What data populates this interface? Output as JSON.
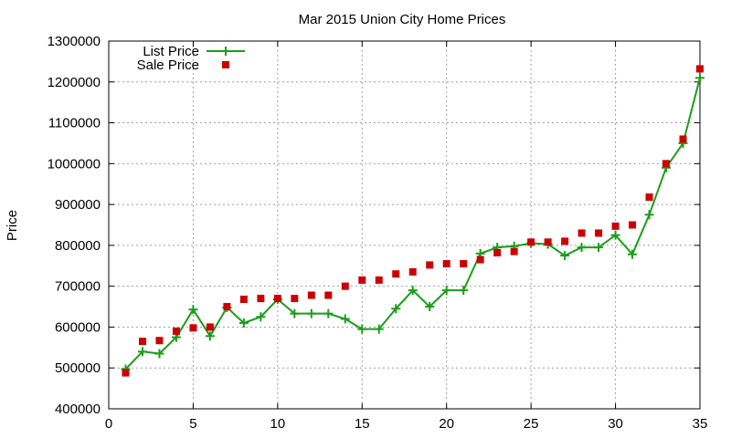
{
  "chart_data": {
    "type": "line",
    "title": "Mar 2015 Union City Home Prices",
    "xlabel": "",
    "ylabel": "Price",
    "xlim": [
      0,
      35
    ],
    "ylim": [
      400000,
      1300000
    ],
    "x_ticks": [
      0,
      5,
      10,
      15,
      20,
      25,
      30,
      35
    ],
    "y_ticks": [
      400000,
      500000,
      600000,
      700000,
      800000,
      900000,
      1000000,
      1100000,
      1200000,
      1300000
    ],
    "grid": true,
    "legend_position": "top-left",
    "x": [
      1,
      2,
      3,
      4,
      5,
      6,
      7,
      8,
      9,
      10,
      11,
      12,
      13,
      14,
      15,
      16,
      17,
      18,
      19,
      20,
      21,
      22,
      23,
      24,
      25,
      26,
      27,
      28,
      29,
      30,
      31,
      32,
      33,
      34,
      35
    ],
    "series": [
      {
        "name": "List Price",
        "style": "line+cross",
        "color": "#1a9e1a",
        "values": [
          497000,
          540000,
          535000,
          575000,
          643000,
          578000,
          648000,
          610000,
          625000,
          668000,
          633000,
          633000,
          633000,
          620000,
          595000,
          595000,
          645000,
          690000,
          650000,
          690000,
          690000,
          780000,
          795000,
          798000,
          805000,
          803000,
          775000,
          795000,
          795000,
          825000,
          778000,
          875000,
          990000,
          1050000,
          1210000
        ]
      },
      {
        "name": "Sale Price",
        "style": "square",
        "color": "#cc0000",
        "values": [
          488000,
          565000,
          567000,
          590000,
          598000,
          600000,
          650000,
          668000,
          670000,
          670000,
          670000,
          678000,
          678000,
          700000,
          715000,
          715000,
          730000,
          735000,
          752000,
          755000,
          755000,
          765000,
          782000,
          785000,
          808000,
          808000,
          810000,
          830000,
          830000,
          847000,
          850000,
          918000,
          1000000,
          1060000,
          1232000
        ]
      }
    ]
  }
}
